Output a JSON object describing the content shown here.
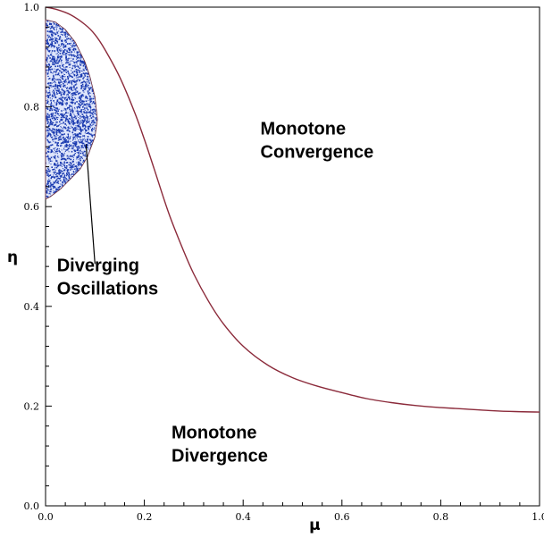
{
  "chart_data": {
    "type": "line",
    "title": "",
    "xlabel": "μ",
    "ylabel": "η",
    "xlim": [
      0.0,
      1.0
    ],
    "ylim": [
      0.0,
      1.0
    ],
    "x_ticks": [
      "0.0",
      "0.2",
      "0.4",
      "0.6",
      "0.8",
      "1.0"
    ],
    "y_ticks": [
      "0.0",
      "0.2",
      "0.4",
      "0.6",
      "0.8",
      "1.0"
    ],
    "grid": false,
    "line_color": "#8b2a3a",
    "region_color": "#1a3ab0",
    "series": [
      {
        "x": [
          0.0,
          0.02,
          0.05,
          0.08,
          0.1,
          0.12,
          0.15,
          0.18,
          0.2,
          0.22,
          0.25,
          0.28,
          0.3,
          0.33,
          0.36,
          0.4,
          0.45,
          0.5,
          0.55,
          0.6,
          0.65,
          0.7,
          0.75,
          0.8,
          0.85,
          0.9,
          0.95,
          1.0
        ],
        "y": [
          1.0,
          0.996,
          0.985,
          0.965,
          0.945,
          0.915,
          0.86,
          0.79,
          0.735,
          0.675,
          0.585,
          0.51,
          0.465,
          0.41,
          0.365,
          0.32,
          0.282,
          0.257,
          0.24,
          0.227,
          0.215,
          0.207,
          0.201,
          0.197,
          0.194,
          0.191,
          0.189,
          0.188
        ]
      }
    ],
    "diverging_region": {
      "x": [
        0.0,
        0.02,
        0.04,
        0.06,
        0.08,
        0.09,
        0.1,
        0.105,
        0.1,
        0.085,
        0.07,
        0.05,
        0.03,
        0.01,
        0.0
      ],
      "y": [
        0.975,
        0.97,
        0.955,
        0.93,
        0.89,
        0.86,
        0.82,
        0.775,
        0.74,
        0.7,
        0.675,
        0.655,
        0.635,
        0.62,
        0.615
      ]
    },
    "annotations": [
      {
        "lines": [
          "Monotone",
          "Convergence"
        ],
        "x": 0.435,
        "y": 0.745
      },
      {
        "lines": [
          "Diverging",
          "Oscillations"
        ],
        "x": 0.023,
        "y": 0.47
      },
      {
        "lines": [
          "Monotone",
          "Divergence"
        ],
        "x": 0.255,
        "y": 0.135
      }
    ],
    "pointer": {
      "from": [
        0.1,
        0.485
      ],
      "to": [
        0.082,
        0.725
      ]
    }
  }
}
